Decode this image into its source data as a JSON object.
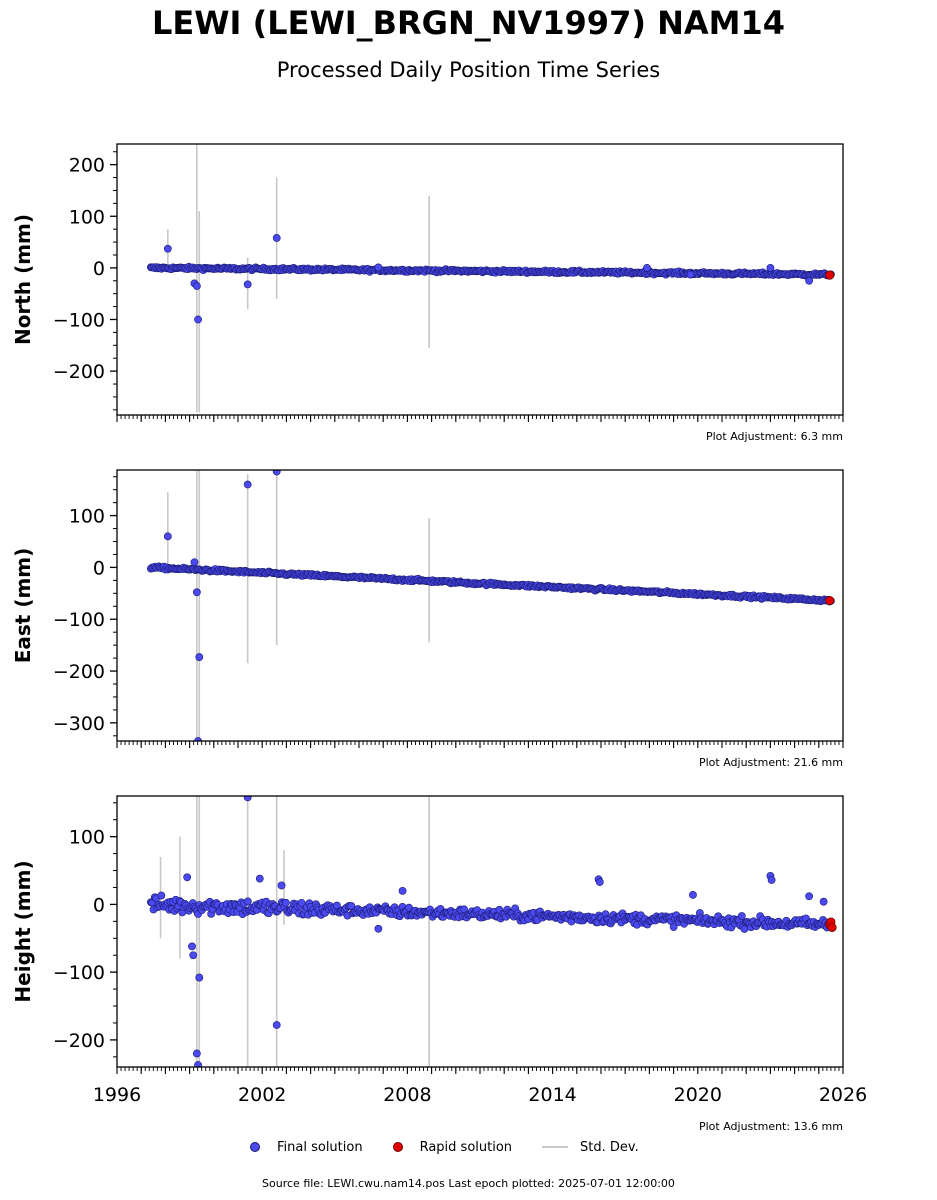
{
  "header": {
    "title": "LEWI (LEWI_BRGN_NV1997) NAM14",
    "subtitle": "Processed Daily Position Time Series"
  },
  "legend": {
    "final": "Final solution",
    "rapid": "Rapid solution",
    "stddev": "Std. Dev."
  },
  "footer": {
    "source": "Source file: LEWI.cwu.nam14.pos  Last epoch plotted: 2025-07-01 12:00:00"
  },
  "colors": {
    "final_fill": "#4a4af0",
    "final_edge": "#1a1a70",
    "rapid_fill": "#e00000",
    "stddev": "#c8c8c8"
  },
  "chart_data": [
    {
      "type": "scatter",
      "ylabel": "North (mm)",
      "adjustment": "Plot Adjustment: 6.3 mm",
      "xlim": [
        1996,
        2026
      ],
      "ylim": [
        -285,
        240
      ],
      "yticks": [
        200,
        100,
        0,
        -100,
        -200
      ],
      "ytick_labels": [
        "200",
        "100",
        "0",
        "−100",
        "−200"
      ],
      "trend": [
        [
          1997.4,
          0
        ],
        [
          2025.5,
          -13
        ]
      ],
      "scatter_noise": 2.5,
      "outliers": [
        [
          1998.1,
          37
        ],
        [
          1999.2,
          -30
        ],
        [
          1999.3,
          -35
        ],
        [
          1999.35,
          -100
        ],
        [
          2001.4,
          -32
        ],
        [
          2002.6,
          58
        ],
        [
          2006.8,
          1
        ],
        [
          2017.9,
          0
        ],
        [
          2019.7,
          -13
        ],
        [
          2023.0,
          0
        ],
        [
          2024.6,
          -25
        ]
      ],
      "stddev_bars": [
        [
          1998.1,
          -5,
          75
        ],
        [
          1999.3,
          -280,
          240
        ],
        [
          1999.4,
          -280,
          110
        ],
        [
          2001.4,
          -80,
          20
        ],
        [
          2002.6,
          -60,
          175
        ],
        [
          2008.9,
          -155,
          140
        ]
      ],
      "rapid": [
        [
          2025.45,
          -14
        ]
      ]
    },
    {
      "type": "scatter",
      "ylabel": "East (mm)",
      "adjustment": "Plot Adjustment: 21.6 mm",
      "xlim": [
        1996,
        2026
      ],
      "ylim": [
        -335,
        188
      ],
      "yticks": [
        100,
        0,
        -100,
        -200,
        -300
      ],
      "ytick_labels": [
        "100",
        "0",
        "−100",
        "−200",
        "−300"
      ],
      "trend": [
        [
          1997.4,
          0
        ],
        [
          2025.5,
          -64
        ]
      ],
      "scatter_noise": 2.5,
      "outliers": [
        [
          1998.1,
          60
        ],
        [
          1999.2,
          10
        ],
        [
          1999.3,
          -48
        ],
        [
          1999.4,
          -173
        ],
        [
          1999.35,
          -335
        ],
        [
          2001.4,
          160
        ],
        [
          2002.6,
          185
        ]
      ],
      "stddev_bars": [
        [
          1998.1,
          0,
          145
        ],
        [
          1999.3,
          -335,
          188
        ],
        [
          1999.4,
          -335,
          188
        ],
        [
          2001.4,
          -185,
          180
        ],
        [
          2002.6,
          -150,
          188
        ],
        [
          2008.9,
          -145,
          95
        ]
      ],
      "rapid": [
        [
          2025.45,
          -64
        ]
      ]
    },
    {
      "type": "scatter",
      "ylabel": "Height (mm)",
      "adjustment": "Plot Adjustment: 13.6 mm",
      "xlim": [
        1996,
        2026
      ],
      "ylim": [
        -240,
        160
      ],
      "yticks": [
        100,
        0,
        -100,
        -200
      ],
      "ytick_labels": [
        "100",
        "0",
        "−100",
        "−200"
      ],
      "xticks": [
        1996,
        2002,
        2008,
        2014,
        2020,
        2026
      ],
      "trend": [
        [
          1997.4,
          0
        ],
        [
          2025.5,
          -30
        ]
      ],
      "scatter_noise": 12,
      "outliers": [
        [
          1998.9,
          40
        ],
        [
          1999.1,
          -62
        ],
        [
          1999.15,
          -75
        ],
        [
          1999.3,
          -220
        ],
        [
          1999.35,
          -237
        ],
        [
          1999.4,
          -108
        ],
        [
          2001.4,
          158
        ],
        [
          2001.9,
          38
        ],
        [
          2002.6,
          -178
        ],
        [
          2002.8,
          28
        ],
        [
          2006.8,
          -36
        ],
        [
          2007.8,
          20
        ],
        [
          2015.9,
          37
        ],
        [
          2015.95,
          33
        ],
        [
          2019.8,
          14
        ],
        [
          2023.0,
          42
        ],
        [
          2023.05,
          36
        ],
        [
          2024.6,
          12
        ],
        [
          2025.2,
          4
        ]
      ],
      "stddev_bars": [
        [
          1997.8,
          -50,
          70
        ],
        [
          1998.6,
          -80,
          100
        ],
        [
          1999.3,
          -240,
          160
        ],
        [
          1999.4,
          -240,
          160
        ],
        [
          2001.4,
          -240,
          160
        ],
        [
          2002.6,
          -240,
          160
        ],
        [
          2002.9,
          -30,
          80
        ],
        [
          2008.9,
          -240,
          160
        ]
      ],
      "rapid": [
        [
          2025.45,
          -30
        ],
        [
          2025.5,
          -26
        ],
        [
          2025.55,
          -34
        ]
      ]
    }
  ]
}
